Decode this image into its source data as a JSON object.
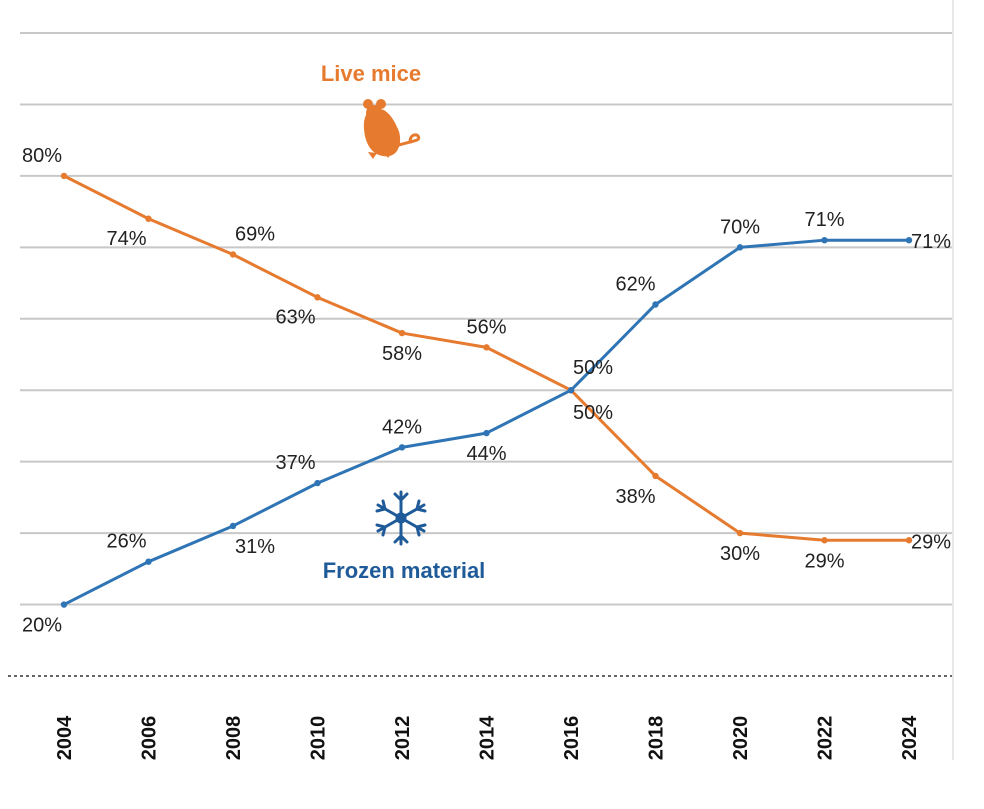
{
  "chart_data": {
    "type": "line",
    "title": "",
    "xlabel": "",
    "ylabel": "",
    "x": [
      "2004",
      "2006",
      "2008",
      "2010",
      "2012",
      "2014",
      "2016",
      "2018",
      "2020",
      "2022",
      "2024"
    ],
    "ylim": [
      10,
      100
    ],
    "grid": true,
    "legend": "inline series labels with icons",
    "series": [
      {
        "name": "Live mice",
        "color": "#e67a2e",
        "icon": "mouse-icon",
        "values": [
          80,
          74,
          69,
          63,
          58,
          56,
          50,
          38,
          30,
          29,
          29
        ],
        "labels": [
          "80%",
          "74%",
          "69%",
          "63%",
          "58%",
          "56%",
          "50%",
          "38%",
          "30%",
          "29%",
          "29%"
        ]
      },
      {
        "name": "Frozen material",
        "color": "#2f75b5",
        "label_color": "#1f5b99",
        "icon": "snowflake-icon",
        "values": [
          20,
          26,
          31,
          37,
          42,
          44,
          50,
          62,
          70,
          71,
          71
        ],
        "labels": [
          "20%",
          "26%",
          "31%",
          "37%",
          "42%",
          "44%",
          "50%",
          "62%",
          "70%",
          "71%",
          "71%"
        ]
      }
    ]
  }
}
